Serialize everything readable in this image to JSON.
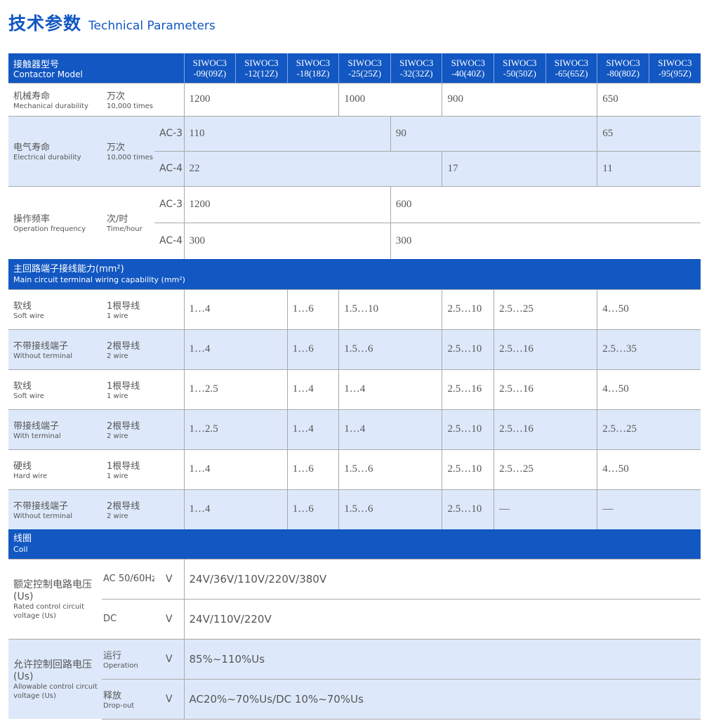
{
  "title": {
    "zh": "技术参数",
    "en": "Technical Parameters"
  },
  "header": {
    "zh": "接触器型号",
    "en": "Contactor Model",
    "models": [
      "SIWOC3\n-09(09Z)",
      "SIWOC3\n-12(12Z)",
      "SIWOC3\n-18(18Z)",
      "SIWOC3\n-25(25Z)",
      "SIWOC3\n-32(32Z)",
      "SIWOC3\n-40(40Z)",
      "SIWOC3\n-50(50Z)",
      "SIWOC3\n-65(65Z)",
      "SIWOC3\n-80(80Z)",
      "SIWOC3\n-95(95Z)"
    ]
  },
  "colors": {
    "accent": "#1257c2",
    "row_alt": "#dde9fb",
    "border": "#a9a9a9"
  },
  "mechanical": {
    "zh": "机械寿命",
    "en": "Mechanical durability",
    "unit_zh": "万次",
    "unit_en": "10,000 times",
    "values": [
      {
        "text": "1200",
        "models": 3
      },
      {
        "text": "1000",
        "models": 2
      },
      {
        "text": "900",
        "models": 3
      },
      {
        "text": "650",
        "models": 2
      }
    ]
  },
  "electrical": {
    "zh": "电气寿命",
    "en": "Electrical durability",
    "unit_zh": "万次",
    "unit_en": "10,000 times",
    "rows": [
      {
        "sub": "AC-3",
        "values": [
          {
            "text": "110",
            "models": 4
          },
          {
            "text": "90",
            "models": 4
          },
          {
            "text": "65",
            "models": 2
          }
        ]
      },
      {
        "sub": "AC-4",
        "values": [
          {
            "text": "22",
            "models": 5
          },
          {
            "text": "17",
            "models": 3
          },
          {
            "text": "11",
            "models": 2
          }
        ]
      }
    ]
  },
  "frequency": {
    "zh": "操作频率",
    "en": "Operation frequency",
    "unit_zh": "次/时",
    "unit_en": "Time/hour",
    "rows": [
      {
        "sub": "AC-3",
        "values": [
          {
            "text": "1200",
            "models": 4
          },
          {
            "text": "600",
            "models": 6
          }
        ]
      },
      {
        "sub": "AC-4",
        "values": [
          {
            "text": "300",
            "models": 4
          },
          {
            "text": "300",
            "models": 6
          }
        ]
      }
    ]
  },
  "wiring": {
    "zh": "主回路端子接线能力(mm²)",
    "en": "Main circuit terminal wiring capability (mm²)",
    "rows": [
      {
        "zh": "软线",
        "en": "Soft wire",
        "unit_zh": "1根导线",
        "unit_en": "1 wire",
        "values": [
          "1…4",
          "1…6",
          "1.5…10",
          "2.5…10",
          "2.5…25",
          "4…50"
        ]
      },
      {
        "zh": "不带接线端子",
        "en": "Without terminal",
        "unit_zh": "2根导线",
        "unit_en": "2 wire",
        "values": [
          "1…4",
          "1…6",
          "1.5…6",
          "2.5…10",
          "2.5…16",
          "2.5…35"
        ]
      },
      {
        "zh": "软线",
        "en": "Soft wire",
        "unit_zh": "1根导线",
        "unit_en": "1 wire",
        "values": [
          "1…2.5",
          "1…4",
          "1…4",
          "2.5…16",
          "2.5…16",
          "4…50"
        ]
      },
      {
        "zh": "带接线端子",
        "en": "With terminal",
        "unit_zh": "2根导线",
        "unit_en": "2 wire",
        "values": [
          "1…2.5",
          "1…4",
          "1…4",
          "2.5…10",
          "2.5…16",
          "2.5…25"
        ]
      },
      {
        "zh": "硬线",
        "en": "Hard wire",
        "unit_zh": "1根导线",
        "unit_en": "1 wire",
        "values": [
          "1…4",
          "1…6",
          "1.5…6",
          "2.5…10",
          "2.5…25",
          "4…50"
        ]
      },
      {
        "zh": "不带接线端子",
        "en": "Without terminal",
        "unit_zh": "2根导线",
        "unit_en": "2 wire",
        "values": [
          "1…4",
          "1…6",
          "1.5…6",
          "2.5…10",
          "—",
          "—"
        ]
      }
    ]
  },
  "coil": {
    "zh": "线圈",
    "en": "Coil",
    "groups": [
      {
        "zh": "额定控制电路电压(Us)",
        "en": "Rated control circuit voltage (Us)",
        "rows": [
          {
            "sub_zh": "AC 50/60Hz",
            "sub_en": "",
            "unit": "V",
            "value": "24V/36V/110V/220V/380V"
          },
          {
            "sub_zh": "DC",
            "sub_en": "",
            "unit": "V",
            "value": "24V/110V/220V"
          }
        ]
      },
      {
        "zh": "允许控制回路电压(Us)",
        "en": "Allowable control circuit voltage (Us)",
        "rows": [
          {
            "sub_zh": "运行",
            "sub_en": "Operation",
            "unit": "V",
            "value": "85%~110%Us"
          },
          {
            "sub_zh": "释放",
            "sub_en": "Drop-out",
            "unit": "V",
            "value": "AC20%~70%Us/DC 10%~70%Us"
          }
        ]
      }
    ]
  }
}
